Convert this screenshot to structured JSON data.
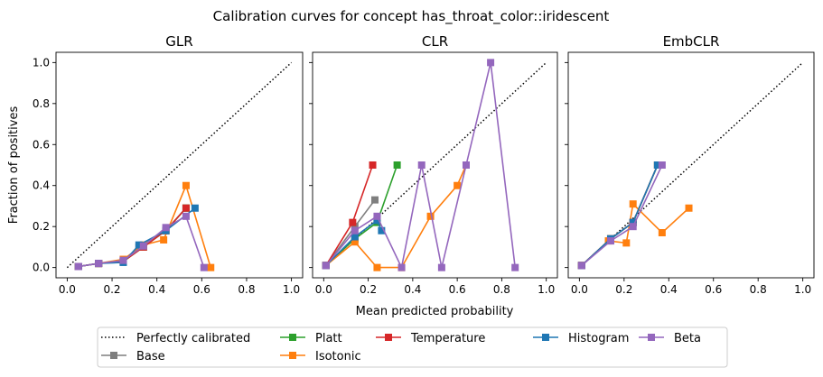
{
  "chart_data": {
    "type": "line",
    "title": "Calibration curves for concept has_throat_color::iridescent",
    "xlabel": "Mean predicted probability",
    "ylabel": "Fraction of positives",
    "xlim": [
      -0.05,
      1.05
    ],
    "ylim": [
      -0.05,
      1.05
    ],
    "ticks": [
      "0.0",
      "0.2",
      "0.4",
      "0.6",
      "0.8",
      "1.0"
    ],
    "grid": false,
    "legend_position": "bottom-center",
    "reference": {
      "name": "Perfectly calibrated",
      "color": "#000000",
      "style": "dotted"
    },
    "series_styles": [
      {
        "name": "Base",
        "color": "#7f7f7f"
      },
      {
        "name": "Platt",
        "color": "#2ca02c"
      },
      {
        "name": "Isotonic",
        "color": "#ff7f0e"
      },
      {
        "name": "Temperature",
        "color": "#d62728"
      },
      {
        "name": "Histogram",
        "color": "#1f77b4"
      },
      {
        "name": "Beta",
        "color": "#9467bd"
      }
    ],
    "panels": [
      {
        "title": "GLR",
        "series": [
          {
            "name": "Base",
            "points": [
              [
                0.05,
                0.005
              ],
              [
                0.14,
                0.02
              ],
              [
                0.25,
                0.03
              ],
              [
                0.32,
                0.1
              ],
              [
                0.44,
                0.18
              ],
              [
                0.53,
                0.29
              ]
            ]
          },
          {
            "name": "Platt",
            "points": [
              [
                0.05,
                0.005
              ],
              [
                0.14,
                0.02
              ],
              [
                0.25,
                0.03
              ],
              [
                0.34,
                0.1
              ],
              [
                0.44,
                0.18
              ],
              [
                0.53,
                0.29
              ]
            ]
          },
          {
            "name": "Isotonic",
            "points": [
              [
                0.05,
                0.005
              ],
              [
                0.14,
                0.02
              ],
              [
                0.25,
                0.04
              ],
              [
                0.34,
                0.11
              ],
              [
                0.43,
                0.135
              ],
              [
                0.53,
                0.4
              ],
              [
                0.64,
                0.0
              ]
            ]
          },
          {
            "name": "Temperature",
            "points": [
              [
                0.05,
                0.005
              ],
              [
                0.14,
                0.02
              ],
              [
                0.25,
                0.03
              ],
              [
                0.34,
                0.1
              ],
              [
                0.44,
                0.18
              ],
              [
                0.53,
                0.29
              ]
            ]
          },
          {
            "name": "Histogram",
            "points": [
              [
                0.05,
                0.005
              ],
              [
                0.14,
                0.02
              ],
              [
                0.25,
                0.025
              ],
              [
                0.32,
                0.11
              ],
              [
                0.44,
                0.18
              ],
              [
                0.57,
                0.29
              ]
            ]
          },
          {
            "name": "Beta",
            "points": [
              [
                0.05,
                0.005
              ],
              [
                0.14,
                0.02
              ],
              [
                0.25,
                0.035
              ],
              [
                0.34,
                0.105
              ],
              [
                0.44,
                0.195
              ],
              [
                0.53,
                0.25
              ],
              [
                0.61,
                0.0
              ]
            ]
          }
        ]
      },
      {
        "title": "CLR",
        "series": [
          {
            "name": "Base",
            "points": [
              [
                0.01,
                0.01
              ],
              [
                0.14,
                0.2
              ],
              [
                0.23,
                0.33
              ]
            ]
          },
          {
            "name": "Platt",
            "points": [
              [
                0.01,
                0.01
              ],
              [
                0.14,
                0.14
              ],
              [
                0.24,
                0.22
              ],
              [
                0.33,
                0.5
              ]
            ]
          },
          {
            "name": "Isotonic",
            "points": [
              [
                0.01,
                0.01
              ],
              [
                0.14,
                0.125
              ],
              [
                0.24,
                0.0
              ],
              [
                0.35,
                0.0
              ],
              [
                0.48,
                0.25
              ],
              [
                0.6,
                0.4
              ],
              [
                0.64,
                0.5
              ]
            ]
          },
          {
            "name": "Temperature",
            "points": [
              [
                0.01,
                0.01
              ],
              [
                0.13,
                0.22
              ],
              [
                0.22,
                0.5
              ]
            ]
          },
          {
            "name": "Histogram",
            "points": [
              [
                0.01,
                0.01
              ],
              [
                0.14,
                0.15
              ],
              [
                0.24,
                0.23
              ],
              [
                0.26,
                0.18
              ]
            ]
          },
          {
            "name": "Beta",
            "points": [
              [
                0.01,
                0.01
              ],
              [
                0.14,
                0.18
              ],
              [
                0.24,
                0.25
              ],
              [
                0.35,
                0.0
              ],
              [
                0.44,
                0.5
              ],
              [
                0.53,
                0.0
              ],
              [
                0.64,
                0.5
              ],
              [
                0.75,
                1.0
              ],
              [
                0.86,
                0.0
              ]
            ]
          }
        ]
      },
      {
        "title": "EmbCLR",
        "series": [
          {
            "name": "Base",
            "points": [
              [
                0.01,
                0.01
              ],
              [
                0.14,
                0.14
              ],
              [
                0.24,
                0.22
              ],
              [
                0.35,
                0.5
              ]
            ]
          },
          {
            "name": "Platt",
            "points": [
              [
                0.01,
                0.01
              ],
              [
                0.14,
                0.14
              ],
              [
                0.24,
                0.22
              ],
              [
                0.35,
                0.5
              ]
            ]
          },
          {
            "name": "Isotonic",
            "points": [
              [
                0.01,
                0.01
              ],
              [
                0.13,
                0.13
              ],
              [
                0.21,
                0.12
              ],
              [
                0.24,
                0.31
              ],
              [
                0.37,
                0.17
              ],
              [
                0.49,
                0.29
              ]
            ]
          },
          {
            "name": "Temperature",
            "points": [
              [
                0.01,
                0.01
              ],
              [
                0.14,
                0.14
              ],
              [
                0.24,
                0.22
              ],
              [
                0.35,
                0.5
              ]
            ]
          },
          {
            "name": "Histogram",
            "points": [
              [
                0.01,
                0.01
              ],
              [
                0.14,
                0.14
              ],
              [
                0.24,
                0.22
              ],
              [
                0.35,
                0.5
              ]
            ]
          },
          {
            "name": "Beta",
            "points": [
              [
                0.01,
                0.01
              ],
              [
                0.14,
                0.13
              ],
              [
                0.24,
                0.2
              ],
              [
                0.37,
                0.5
              ]
            ]
          }
        ]
      }
    ]
  }
}
